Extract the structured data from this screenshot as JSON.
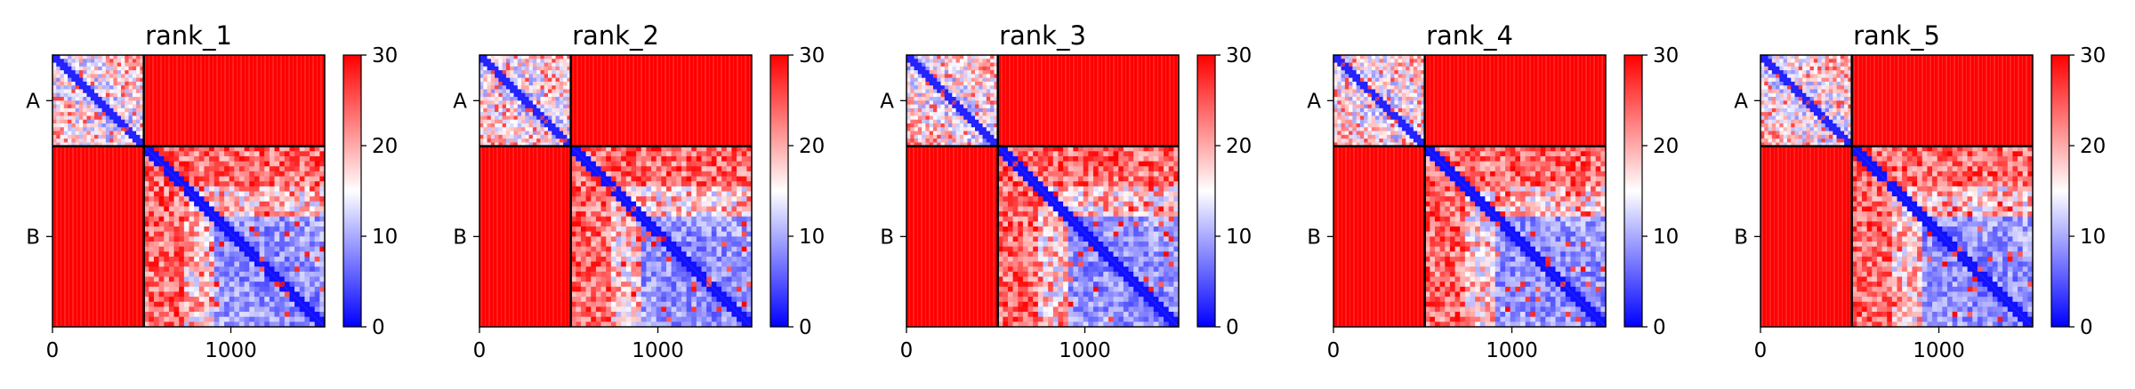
{
  "chart_data": {
    "type": "heatmap",
    "colormap": [
      "#0000ff",
      "#ffffff",
      "#ff0000"
    ],
    "colorbar": {
      "min": 0,
      "max": 30,
      "ticks": [
        0,
        10,
        20,
        30
      ]
    },
    "xlim": [
      0,
      1526
    ],
    "xticks": [
      0,
      1000
    ],
    "chain_boundary": 512,
    "chains": [
      "A",
      "B"
    ],
    "intra_chain_values": "low (0-15, blue) near diagonal, mixed blue/white/red away from diagonal",
    "inter_chain_values": "saturated high (~30, red)",
    "panels": [
      {
        "title": "rank_1"
      },
      {
        "title": "rank_2"
      },
      {
        "title": "rank_3"
      },
      {
        "title": "rank_4"
      },
      {
        "title": "rank_5"
      }
    ]
  }
}
